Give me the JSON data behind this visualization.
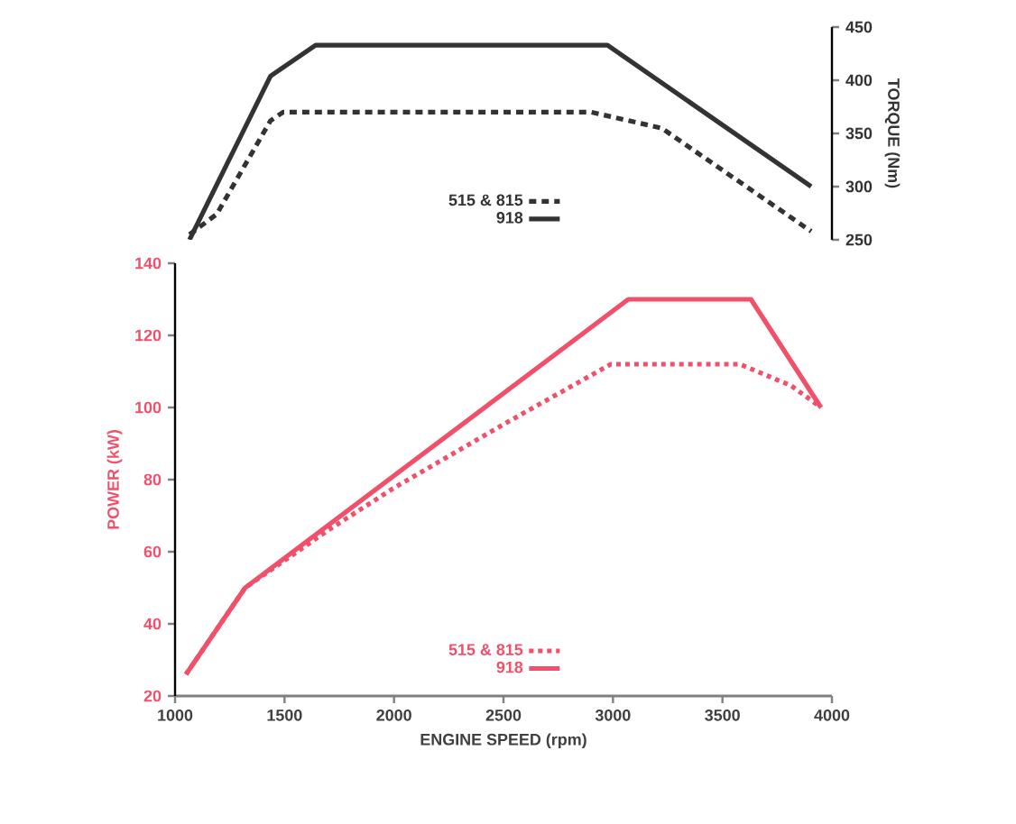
{
  "chart_data": [
    {
      "type": "line",
      "ylabel": "TORQUE (Nm)",
      "xlim": [
        1000,
        4000
      ],
      "ylim": [
        250,
        450
      ],
      "yticks": [
        250,
        300,
        350,
        400,
        450
      ],
      "tick_labels": "y",
      "legend": "bottom",
      "marker": "none",
      "grid": false,
      "series": [
        {
          "name": "515 & 815",
          "color": "#333333",
          "line_style": "dashed",
          "x": [
            1066,
            1190,
            1436,
            1494,
            2900,
            3222,
            3905
          ],
          "values": [
            255,
            274,
            362,
            370,
            370,
            355,
            258
          ]
        },
        {
          "name": "918",
          "color": "#333333",
          "line_style": "solid",
          "x": [
            1066,
            1436,
            1642,
            2975,
            3905
          ],
          "values": [
            250,
            404,
            433,
            433,
            300
          ]
        }
      ]
    },
    {
      "type": "line",
      "xlabel": "ENGINE SPEED (rpm)",
      "ylabel": "POWER (kW)",
      "xlim": [
        1000,
        4000
      ],
      "ylim": [
        20,
        140
      ],
      "xticks": [
        1000,
        1500,
        2000,
        2500,
        3000,
        3500,
        4000
      ],
      "yticks": [
        20,
        40,
        60,
        80,
        100,
        120,
        140
      ],
      "legend": "bottom",
      "marker": "none",
      "grid": false,
      "series": [
        {
          "name": "515 & 815",
          "color": "#f0506a",
          "line_style": "dotted",
          "x": [
            1050,
            1320,
            1700,
            1995,
            2520,
            2990,
            3580,
            3815,
            3950
          ],
          "values": [
            26,
            50,
            66,
            77.5,
            96,
            112,
            112,
            106,
            100
          ]
        },
        {
          "name": "918",
          "color": "#f0506a",
          "line_style": "solid",
          "x": [
            1050,
            1320,
            3070,
            3630,
            3950
          ],
          "values": [
            26,
            50,
            130,
            130,
            100
          ]
        }
      ]
    }
  ]
}
